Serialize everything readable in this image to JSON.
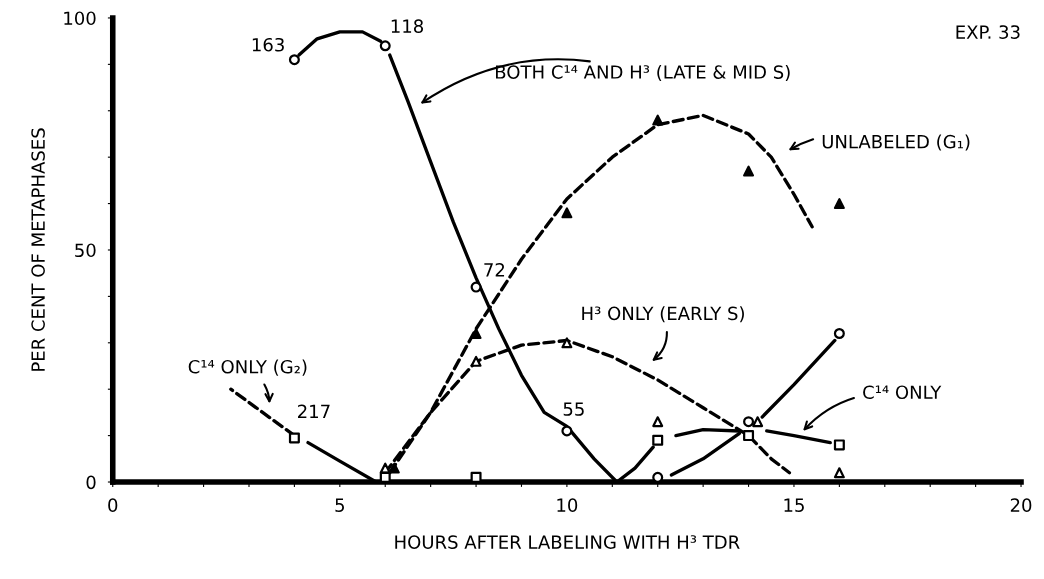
{
  "chart_data": {
    "type": "scatter",
    "xlabel": "HOURS AFTER LABELING WITH H³ TDR",
    "ylabel": "PER CENT OF METAPHASES",
    "xlim": [
      0,
      20
    ],
    "ylim": [
      0,
      100
    ],
    "xticks": [
      0,
      {
        "value": 1,
        "label": null
      },
      {
        "value": 2,
        "label": null
      },
      {
        "value": 3,
        "label": null
      },
      {
        "value": 4,
        "label": null
      },
      5,
      {
        "value": 6,
        "label": null
      },
      {
        "value": 7,
        "label": null
      },
      {
        "value": 8,
        "label": null
      },
      {
        "value": 9,
        "label": null
      },
      10,
      {
        "value": 11,
        "label": null
      },
      {
        "value": 12,
        "label": null
      },
      {
        "value": 13,
        "label": null
      },
      {
        "value": 14,
        "label": null
      },
      15,
      {
        "value": 16,
        "label": null
      },
      {
        "value": 17,
        "label": null
      },
      {
        "value": 18,
        "label": null
      },
      {
        "value": 19,
        "label": null
      },
      20
    ],
    "yticks": [
      0,
      {
        "value": 10,
        "label": null
      },
      {
        "value": 20,
        "label": null
      },
      {
        "value": 30,
        "label": null
      },
      {
        "value": 40,
        "label": null
      },
      50,
      {
        "value": 60,
        "label": null
      },
      {
        "value": 70,
        "label": null
      },
      {
        "value": 80,
        "label": null
      },
      {
        "value": 90,
        "label": null
      },
      100
    ],
    "grid": false,
    "legend": false,
    "series": [
      {
        "marker": "circle",
        "x": [
          4,
          6,
          8,
          10,
          12,
          14,
          16
        ],
        "values": [
          91,
          94,
          42,
          11,
          1,
          13,
          32
        ]
      },
      {
        "marker": "triangle",
        "color": "#000000",
        "x": [
          6.2,
          8,
          10,
          12,
          14,
          16
        ],
        "values": [
          3,
          32,
          58,
          78,
          67,
          60
        ]
      },
      {
        "marker": "triangle",
        "x": [
          6,
          8,
          10,
          12,
          14.2,
          16
        ],
        "values": [
          3,
          26,
          30,
          13,
          13,
          2
        ]
      },
      {
        "marker": "square",
        "x": [
          4,
          6,
          8,
          12,
          14,
          16
        ],
        "values": [
          9.5,
          1,
          1,
          9,
          10,
          8
        ]
      },
      {
        "type": "line",
        "line_style": "solid",
        "color": "#000000",
        "x": [
          4.1,
          4.5,
          5,
          5.5,
          5.9
        ],
        "values": [
          92,
          95.5,
          97,
          97,
          95
        ]
      },
      {
        "type": "line",
        "line_style": "solid",
        "color": "#000000",
        "x": [
          6.1,
          6.5,
          7,
          7.5,
          8,
          8.5,
          9,
          9.5,
          10,
          10.6,
          11.1
        ],
        "values": [
          92,
          82,
          69,
          56,
          44,
          33,
          23,
          15,
          12,
          5,
          0
        ]
      },
      {
        "type": "line",
        "line_style": "solid",
        "color": "#000000",
        "x": [
          4.3,
          5,
          5.8
        ],
        "values": [
          8.5,
          4.5,
          0
        ]
      },
      {
        "type": "line",
        "line_style": "dashed",
        "color": "#000000",
        "x": [
          4,
          3.3,
          2.6
        ],
        "values": [
          10,
          15,
          20
        ]
      },
      {
        "type": "line",
        "line_style": "solid",
        "color": "#000000",
        "x": [
          11.1,
          11.5,
          11.9
        ],
        "values": [
          0,
          3,
          7.5
        ]
      },
      {
        "type": "line",
        "line_style": "solid",
        "color": "#000000",
        "x": [
          12.4,
          13,
          13.8
        ],
        "values": [
          10,
          11.3,
          11
        ]
      },
      {
        "type": "line",
        "line_style": "solid",
        "color": "#000000",
        "x": [
          12.3,
          13,
          13.8
        ],
        "values": [
          1.5,
          5,
          10.5
        ]
      },
      {
        "type": "line",
        "line_style": "solid",
        "color": "#000000",
        "x": [
          14.3,
          15,
          15.9
        ],
        "values": [
          14,
          21,
          30.5
        ]
      },
      {
        "type": "line",
        "line_style": "solid",
        "color": "#000000",
        "x": [
          14.4,
          15,
          15.8
        ],
        "values": [
          11,
          10,
          8.5
        ]
      },
      {
        "type": "line",
        "line_style": "dashed",
        "color": "#000000",
        "x": [
          6.1,
          7,
          8,
          9,
          10,
          11,
          12,
          13,
          14,
          14.5,
          15,
          15.4
        ],
        "values": [
          2,
          15,
          33,
          48,
          61,
          70,
          77,
          79,
          75,
          70,
          62,
          55
        ]
      },
      {
        "type": "line",
        "line_style": "dashed",
        "color": "#000000",
        "x": [
          6,
          7,
          8,
          9,
          10,
          11,
          12,
          13,
          14,
          14.5,
          14.9
        ],
        "values": [
          2,
          15,
          26,
          29.5,
          30.5,
          27,
          22,
          16,
          10,
          5,
          2
        ]
      }
    ],
    "annotations": [
      {
        "text": "163",
        "x": 4,
        "y": 91
      },
      {
        "text": "118",
        "x": 6,
        "y": 94
      },
      {
        "text": "72",
        "x": 8,
        "y": 42
      },
      {
        "text": "55",
        "x": 10,
        "y": 11
      },
      {
        "text": "217",
        "x": 4,
        "y": 9.5
      },
      "BOTH C¹⁴ AND H³ (LATE & MID S)",
      "UNLABELED (G₁)",
      "H³ ONLY (EARLY S)",
      {
        "text": "C¹⁴ ONLY",
        "x": 15.2,
        "y": 11
      },
      "C¹⁴ ONLY (G₂)",
      "EXP. 33"
    ]
  }
}
